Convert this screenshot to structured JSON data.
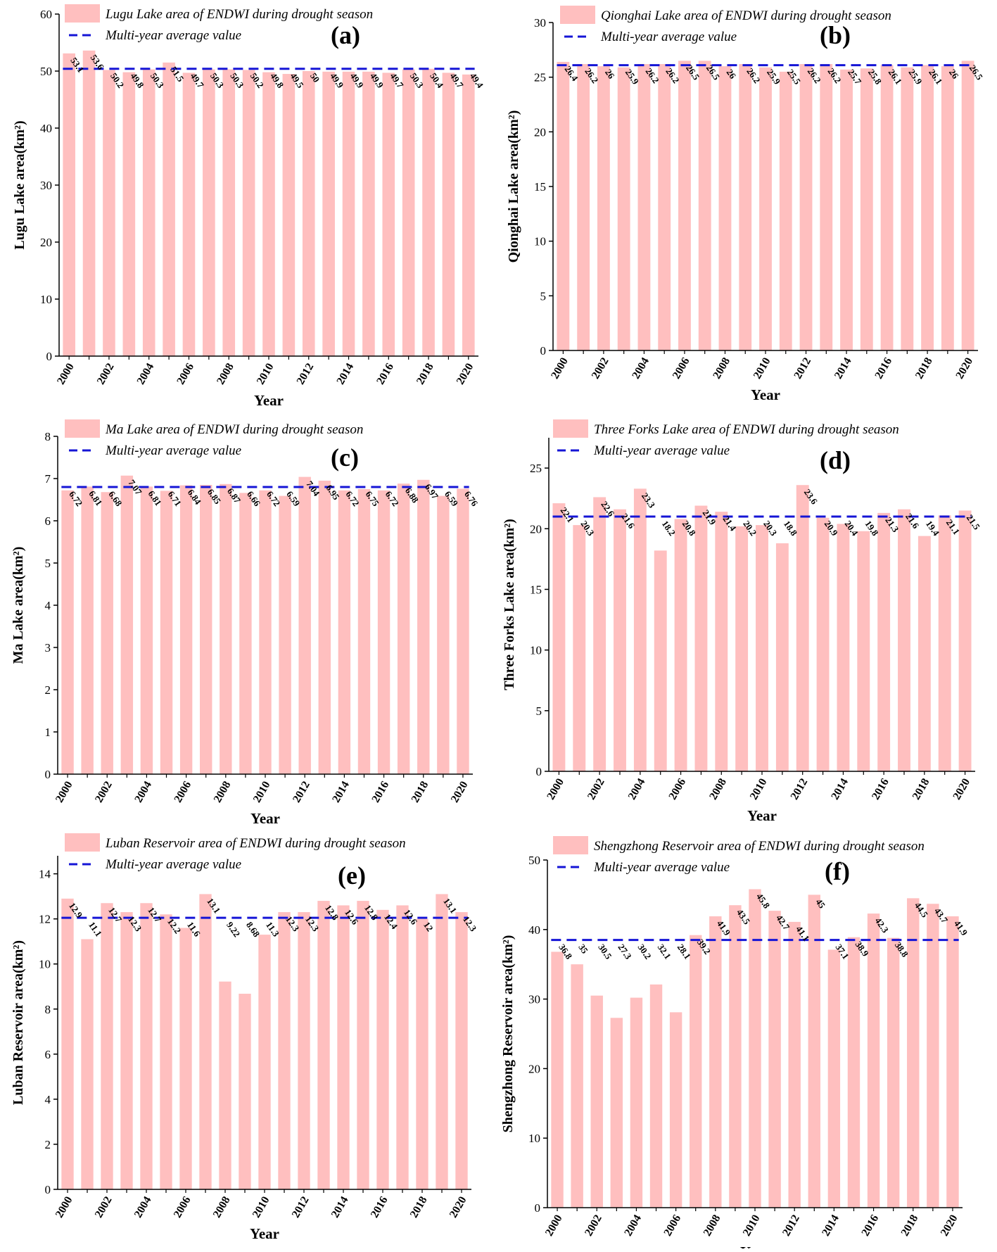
{
  "figure": {
    "colors": {
      "bar": "#ffbfbf",
      "avg_line": "#1515d6",
      "axis": "#000000",
      "text": "#000000"
    },
    "icons": {
      "legend_bar": "legend-swatch-icon",
      "legend_line": "dashed-line-icon"
    }
  },
  "chart_data": [
    {
      "type": "bar",
      "panel_label": "(a)",
      "title": "",
      "xlabel": "Year",
      "ylabel": "Lugu Lake area(km²)",
      "legend_bar": "Lugu Lake area of ENDWI during drought season",
      "legend_line": "Multi-year average value",
      "ylim": [
        0,
        60
      ],
      "yticks": [
        0,
        10,
        20,
        30,
        40,
        50,
        60
      ],
      "xticks": [
        2000,
        2002,
        2004,
        2006,
        2008,
        2010,
        2012,
        2014,
        2016,
        2018,
        2020
      ],
      "average": 50.4,
      "categories": [
        2000,
        2001,
        2002,
        2003,
        2004,
        2005,
        2006,
        2007,
        2008,
        2009,
        2010,
        2011,
        2012,
        2013,
        2014,
        2015,
        2016,
        2017,
        2018,
        2019,
        2020
      ],
      "values": [
        53.1,
        53.6,
        50.2,
        49.8,
        50.3,
        51.5,
        49.7,
        50.3,
        50.3,
        50.2,
        49.8,
        49.5,
        50,
        49.9,
        49.9,
        49.9,
        49.7,
        50.3,
        50.4,
        49.7,
        49.4
      ],
      "labels": [
        "53.1",
        "53.6",
        "50.2",
        "49.8",
        "50.3",
        "51.5",
        "49.7",
        "50.3",
        "50.3",
        "50.2",
        "49.8",
        "49.5",
        "50",
        "49.9",
        "49.9",
        "49.9",
        "49.7",
        "50.3",
        "50.4",
        "49.7",
        "49.4"
      ]
    },
    {
      "type": "bar",
      "panel_label": "(b)",
      "title": "",
      "xlabel": "Year",
      "ylabel": "Qionghai Lake area(km²)",
      "legend_bar": "Qionghai Lake area of ENDWI during drought season",
      "legend_line": "Multi-year average value",
      "ylim": [
        0,
        30
      ],
      "yticks": [
        0,
        5,
        10,
        15,
        20,
        25,
        30
      ],
      "xticks": [
        2000,
        2002,
        2004,
        2006,
        2008,
        2010,
        2012,
        2014,
        2016,
        2018,
        2020
      ],
      "average": 26.1,
      "categories": [
        2000,
        2001,
        2002,
        2003,
        2004,
        2005,
        2006,
        2007,
        2008,
        2009,
        2010,
        2011,
        2012,
        2013,
        2014,
        2015,
        2016,
        2017,
        2018,
        2019,
        2020
      ],
      "values": [
        26.4,
        26.2,
        26,
        25.9,
        26.2,
        26.2,
        26.5,
        26.5,
        26,
        26.2,
        25.9,
        25.5,
        26.2,
        26.2,
        25.7,
        25.8,
        26.1,
        25.9,
        26.1,
        26,
        26.5
      ],
      "labels": [
        "26.4",
        "26.2",
        "26",
        "25.9",
        "26.2",
        "26.2",
        "26.5",
        "26.5",
        "26",
        "26.2",
        "25.9",
        "25.5",
        "26.2",
        "26.2",
        "25.7",
        "25.8",
        "26.1",
        "25.9",
        "26.1",
        "26",
        "26.5"
      ]
    },
    {
      "type": "bar",
      "panel_label": "(c)",
      "title": "",
      "xlabel": "Year",
      "ylabel": "Ma Lake area(km²)",
      "legend_bar": "Ma Lake area of ENDWI during drought season",
      "legend_line": "Multi-year average value",
      "ylim": [
        0,
        8
      ],
      "yticks": [
        0,
        1,
        2,
        3,
        4,
        5,
        6,
        7,
        8
      ],
      "xticks": [
        2000,
        2002,
        2004,
        2006,
        2008,
        2010,
        2012,
        2014,
        2016,
        2018,
        2020
      ],
      "average": 6.8,
      "categories": [
        2000,
        2001,
        2002,
        2003,
        2004,
        2005,
        2006,
        2007,
        2008,
        2009,
        2010,
        2011,
        2012,
        2013,
        2014,
        2015,
        2016,
        2017,
        2018,
        2019,
        2020
      ],
      "values": [
        6.72,
        6.81,
        6.68,
        7.07,
        6.81,
        6.71,
        6.84,
        6.85,
        6.87,
        6.66,
        6.72,
        6.59,
        7.04,
        6.95,
        6.72,
        6.75,
        6.72,
        6.88,
        6.97,
        6.59,
        6.76
      ],
      "labels": [
        "6.72",
        "6.81",
        "6.68",
        "7.07",
        "6.81",
        "6.71",
        "6.84",
        "6.85",
        "6.87",
        "6.66",
        "6.72",
        "6.59",
        "7.04",
        "6.95",
        "6.72",
        "6.75",
        "6.72",
        "6.88",
        "6.97",
        "6.59",
        "6.76"
      ]
    },
    {
      "type": "bar",
      "panel_label": "(d)",
      "title": "",
      "xlabel": "Year",
      "ylabel": "Three Forks Lake area(km²)",
      "legend_bar": "Three Forks Lake area of ENDWI during drought season",
      "legend_line": "Multi-year average value",
      "ylim": [
        0,
        27.5
      ],
      "yticks": [
        0,
        5,
        10,
        15,
        20,
        25
      ],
      "xticks": [
        2000,
        2002,
        2004,
        2006,
        2008,
        2010,
        2012,
        2014,
        2016,
        2018,
        2020
      ],
      "average": 21,
      "categories": [
        2000,
        2001,
        2002,
        2003,
        2004,
        2005,
        2006,
        2007,
        2008,
        2009,
        2010,
        2011,
        2012,
        2013,
        2014,
        2015,
        2016,
        2017,
        2018,
        2019,
        2020
      ],
      "values": [
        22.1,
        20.3,
        22.6,
        21.6,
        23.3,
        18.2,
        20.8,
        21.9,
        21.4,
        20.2,
        20.3,
        18.8,
        23.6,
        20.9,
        20.4,
        19.8,
        21.3,
        21.6,
        19.4,
        21.1,
        21.5
      ],
      "labels": [
        "22.1",
        "20.3",
        "22.6",
        "21.6",
        "23.3",
        "18.2",
        "20.8",
        "21.9",
        "21.4",
        "20.2",
        "20.3",
        "18.8",
        "23.6",
        "20.9",
        "20.4",
        "19.8",
        "21.3",
        "21.6",
        "19.4",
        "21.1",
        "21.5"
      ]
    },
    {
      "type": "bar",
      "panel_label": "(e)",
      "title": "",
      "xlabel": "Year",
      "ylabel": "Luban Reservoir area(km²)",
      "legend_bar": "Luban Reservoir area of ENDWI during drought season",
      "legend_line": "Multi-year average value",
      "ylim": [
        0,
        14.8
      ],
      "yticks": [
        0,
        2,
        4,
        6,
        8,
        10,
        12,
        14
      ],
      "xticks": [
        2000,
        2002,
        2004,
        2006,
        2008,
        2010,
        2012,
        2014,
        2016,
        2018,
        2020
      ],
      "average": 12.05,
      "categories": [
        2000,
        2001,
        2002,
        2003,
        2004,
        2005,
        2006,
        2007,
        2008,
        2009,
        2010,
        2011,
        2012,
        2013,
        2014,
        2015,
        2016,
        2017,
        2018,
        2019,
        2020
      ],
      "values": [
        12.9,
        11.1,
        12.7,
        12.3,
        12.7,
        12.2,
        11.6,
        13.1,
        9.22,
        8.68,
        11.3,
        12.3,
        12.3,
        12.8,
        12.6,
        12.8,
        12.4,
        12.6,
        12,
        13.1,
        12.3
      ],
      "labels": [
        "12.9",
        "11.1",
        "12.7",
        "12.3",
        "12.7",
        "12.2",
        "11.6",
        "13.1",
        "9.22",
        "8.68",
        "11.3",
        "12.3",
        "12.3",
        "12.8",
        "12.6",
        "12.8",
        "12.4",
        "12.6",
        "12",
        "13.1",
        "12.3"
      ]
    },
    {
      "type": "bar",
      "panel_label": "(f)",
      "title": "",
      "xlabel": "Year",
      "ylabel": "Shengzhong Reservoir area(km²)",
      "legend_bar": "Shengzhong Reservoir area of ENDWI during drought season",
      "legend_line": "Multi-year average value",
      "ylim": [
        0,
        50
      ],
      "yticks": [
        0,
        10,
        20,
        30,
        40,
        50
      ],
      "xticks": [
        2000,
        2002,
        2004,
        2006,
        2008,
        2010,
        2012,
        2014,
        2016,
        2018,
        2020
      ],
      "average": 38.5,
      "categories": [
        2000,
        2001,
        2002,
        2003,
        2004,
        2005,
        2006,
        2007,
        2008,
        2009,
        2010,
        2011,
        2012,
        2013,
        2014,
        2015,
        2016,
        2017,
        2018,
        2019,
        2020
      ],
      "values": [
        36.8,
        35,
        30.5,
        27.3,
        30.2,
        32.1,
        28.1,
        39.2,
        41.9,
        43.5,
        45.8,
        42.7,
        41.1,
        45,
        37.1,
        38.9,
        42.3,
        38.8,
        44.5,
        43.7,
        41.9
      ],
      "labels": [
        "36.8",
        "35",
        "30.5",
        "27.3",
        "30.2",
        "32.1",
        "28.1",
        "39.2",
        "41.9",
        "43.5",
        "45.8",
        "42.7",
        "41.1",
        "45",
        "37.1",
        "38.9",
        "42.3",
        "38.8",
        "44.5",
        "43.7",
        "41.9"
      ]
    }
  ]
}
